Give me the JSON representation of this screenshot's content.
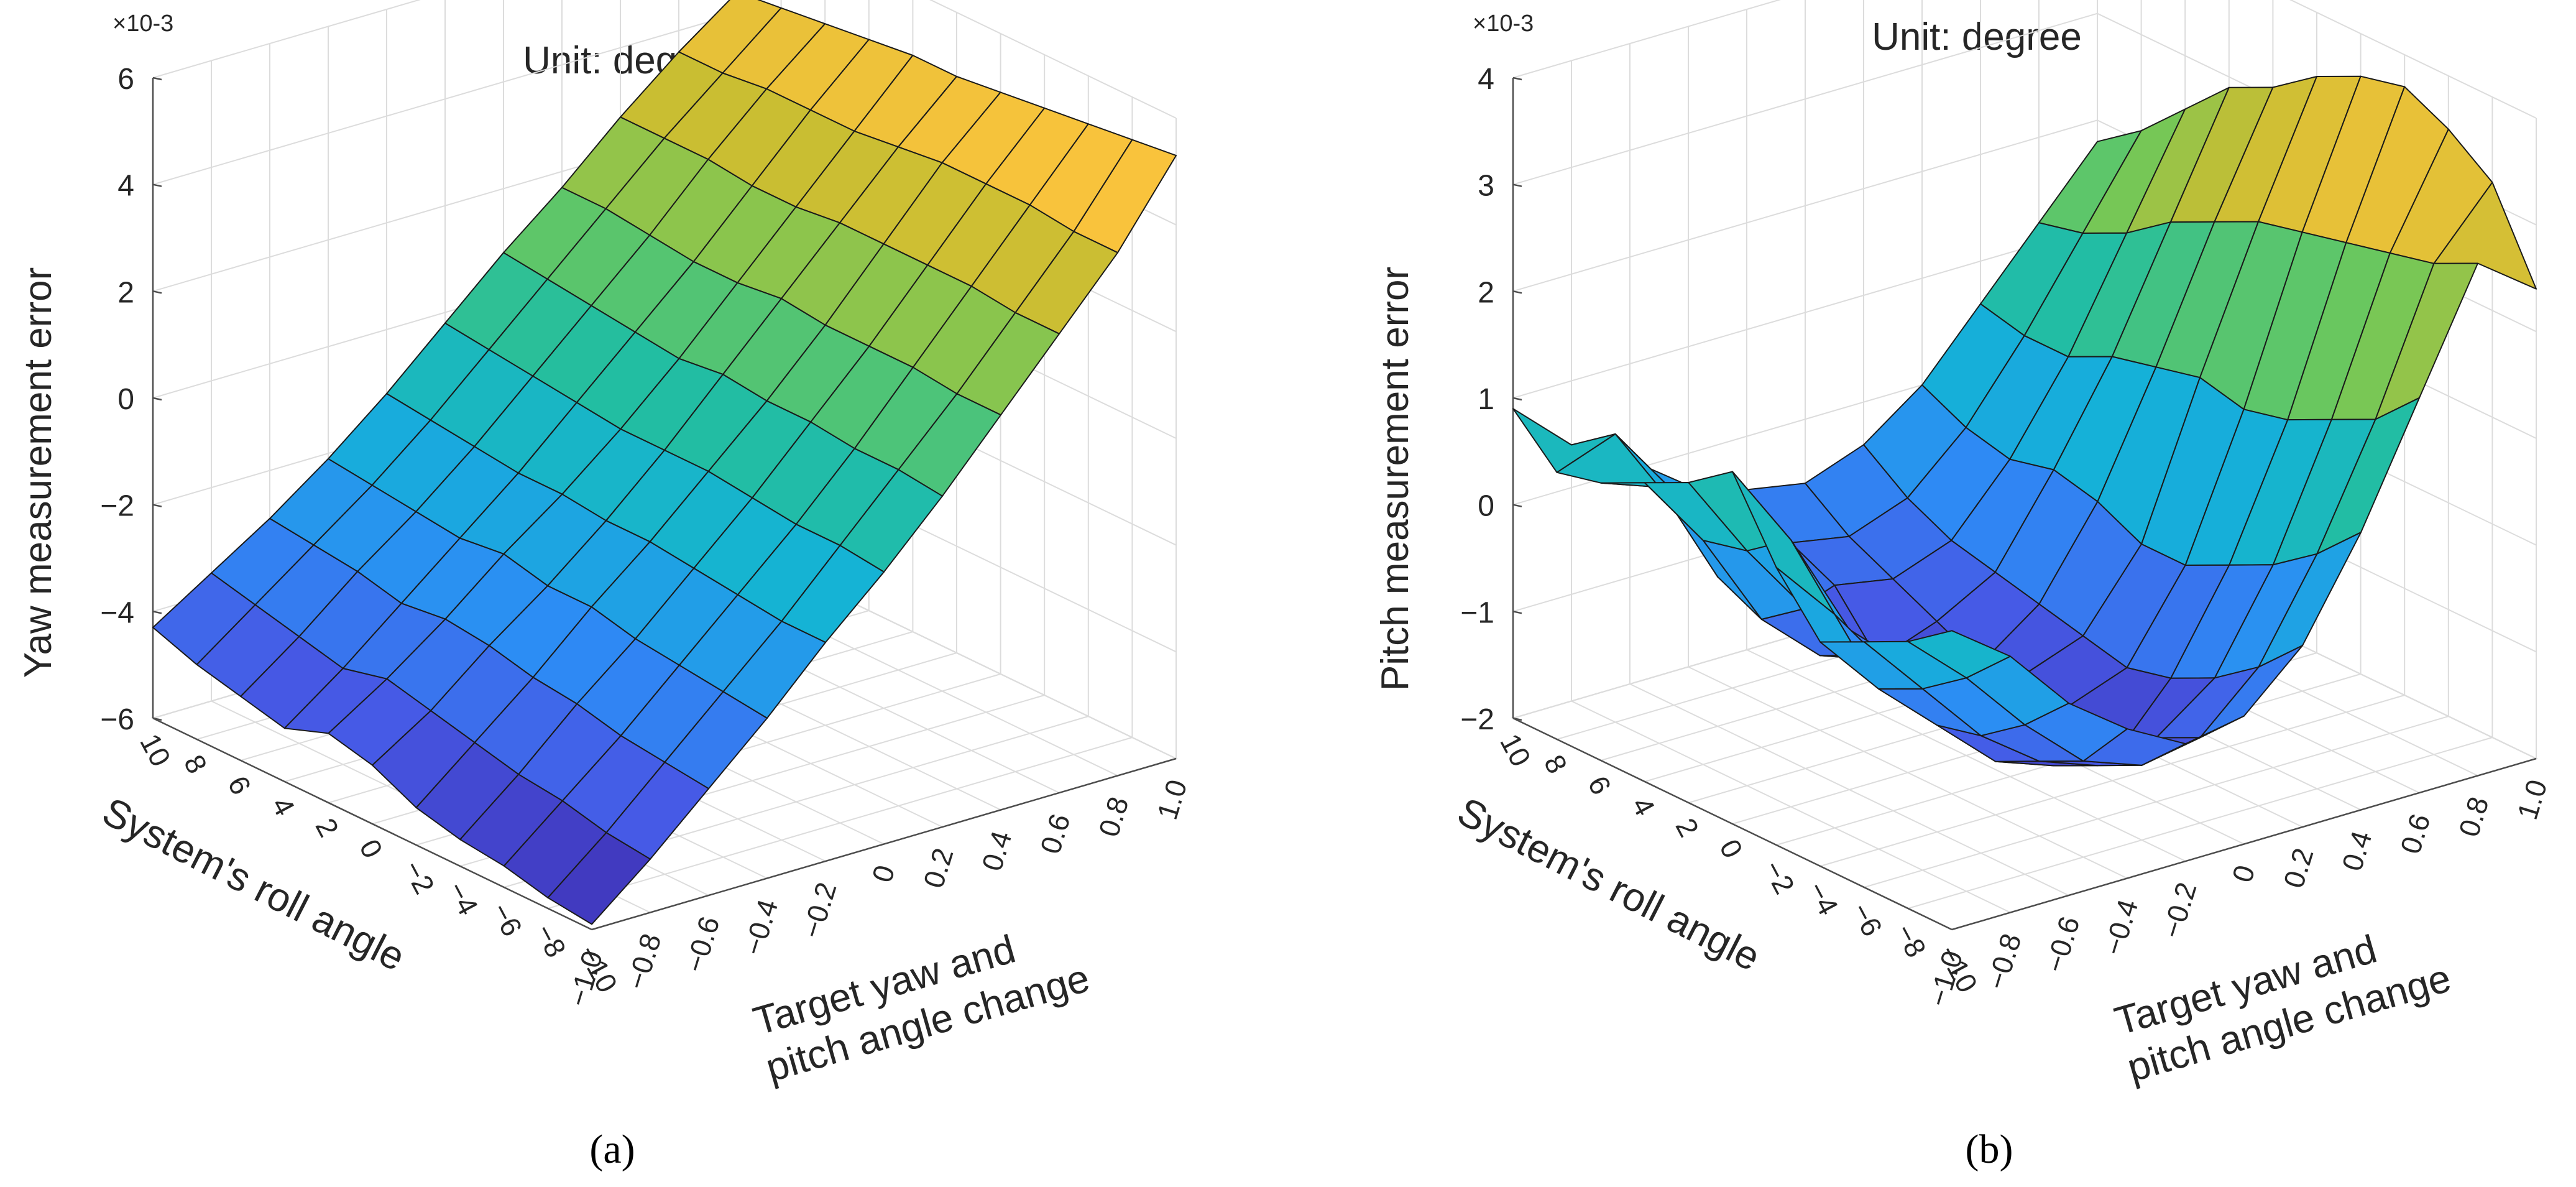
{
  "figure": {
    "panels": [
      "(a)",
      "(b)"
    ]
  },
  "chart_data": [
    {
      "type": "surface3d",
      "title": "Unit: degree",
      "zlabel": "Yaw measurement error",
      "zscale": "×10-3",
      "x_label": "System's roll angle",
      "y_label": [
        "Target yaw and",
        "pitch angle change"
      ],
      "x": [
        10,
        8,
        6,
        4,
        2,
        0,
        -2,
        -4,
        -6,
        -8,
        -10
      ],
      "x_tick_labels": [
        "10",
        "8",
        "6",
        "4",
        "2",
        "0",
        "−2",
        "−4",
        "−6",
        "−8",
        "−10"
      ],
      "y": [
        -1.0,
        -0.8,
        -0.6,
        -0.4,
        -0.2,
        0,
        0.2,
        0.4,
        0.6,
        0.8,
        1.0
      ],
      "y_tick_labels": [
        "−1.0",
        "−0.8",
        "−0.6",
        "−0.4",
        "−0.2",
        "0",
        "0.2",
        "0.4",
        "0.6",
        "0.8",
        "1.0"
      ],
      "zlim": [
        -6,
        6
      ],
      "z_ticks": [
        -6,
        -4,
        -2,
        0,
        2,
        4,
        6
      ],
      "z_tick_labels": [
        "−6",
        "−4",
        "−2",
        "0",
        "2",
        "4",
        "6"
      ],
      "z": [
        [
          -4.3,
          -3.6,
          -2.9,
          -2.1,
          -1.2,
          -0.2,
          0.8,
          1.7,
          2.7,
          3.6,
          4.4
        ],
        [
          -4.6,
          -3.8,
          -3.0,
          -2.2,
          -1.3,
          -0.3,
          0.7,
          1.7,
          2.7,
          3.6,
          4.5
        ],
        [
          -4.8,
          -4.0,
          -3.1,
          -2.3,
          -1.4,
          -0.4,
          0.6,
          1.6,
          2.7,
          3.7,
          4.6
        ],
        [
          -5.0,
          -4.2,
          -3.3,
          -2.4,
          -1.5,
          -0.5,
          0.5,
          1.5,
          2.6,
          3.7,
          4.7
        ],
        [
          -4.7,
          -4.0,
          -3.2,
          -2.3,
          -1.5,
          -0.6,
          0.4,
          1.5,
          2.6,
          3.7,
          4.8
        ],
        [
          -4.9,
          -4.2,
          -3.3,
          -2.5,
          -1.6,
          -0.6,
          0.5,
          1.6,
          2.7,
          3.8,
          4.8
        ],
        [
          -5.3,
          -4.4,
          -3.5,
          -2.5,
          -1.6,
          -0.6,
          0.4,
          1.5,
          2.7,
          3.9,
          4.9
        ],
        [
          -5.5,
          -4.6,
          -3.6,
          -2.7,
          -1.7,
          -0.7,
          0.4,
          1.5,
          2.7,
          3.9,
          5.0
        ],
        [
          -5.6,
          -4.7,
          -3.8,
          -2.8,
          -1.8,
          -0.8,
          0.3,
          1.5,
          2.7,
          3.9,
          5.1
        ],
        [
          -5.8,
          -4.9,
          -3.9,
          -2.9,
          -1.9,
          -0.8,
          0.3,
          1.4,
          2.6,
          3.8,
          5.2
        ],
        [
          -5.9,
          -5.0,
          -4.0,
          -3.0,
          -1.9,
          -0.9,
          0.2,
          1.4,
          2.6,
          3.8,
          5.3
        ]
      ]
    },
    {
      "type": "surface3d",
      "title": "Unit: degree",
      "zlabel": "Pitch measurement error",
      "zscale": "×10-3",
      "x_label": "System's roll angle",
      "y_label": [
        "Target yaw and",
        "pitch angle change"
      ],
      "x": [
        10,
        8,
        6,
        4,
        2,
        0,
        -2,
        -4,
        -6,
        -8,
        -10
      ],
      "x_tick_labels": [
        "10",
        "8",
        "6",
        "4",
        "2",
        "0",
        "−2",
        "−4",
        "−6",
        "−8",
        "−10"
      ],
      "y": [
        -1.0,
        -0.8,
        -0.6,
        -0.4,
        -0.2,
        0,
        0.2,
        0.4,
        0.6,
        0.8,
        1.0
      ],
      "y_tick_labels": [
        "−1.0",
        "−0.8",
        "−0.6",
        "−0.4",
        "−0.2",
        "0",
        "0.2",
        "0.4",
        "0.6",
        "0.8",
        "1.0"
      ],
      "zlim": [
        -2,
        4
      ],
      "z_ticks": [
        -2,
        -1,
        0,
        1,
        2,
        3,
        4
      ],
      "z_tick_labels": [
        "−2",
        "−1",
        "0",
        "1",
        "2",
        "3",
        "4"
      ],
      "z": [
        [
          0.9,
          0.4,
          0.1,
          -0.3,
          -0.5,
          -0.6,
          -0.4,
          0.0,
          0.6,
          1.2,
          1.8
        ],
        [
          0.5,
          0.7,
          0.0,
          -0.5,
          -0.8,
          -0.9,
          -0.7,
          -0.2,
          0.5,
          1.3,
          2.1
        ],
        [
          0.6,
          0.4,
          -0.6,
          -1.2,
          -1.0,
          -1.1,
          -0.9,
          -0.3,
          0.5,
          1.5,
          2.5
        ],
        [
          0.8,
          0.1,
          -0.8,
          -1.3,
          -1.5,
          -1.3,
          -1.0,
          -0.2,
          0.7,
          1.8,
          2.9
        ],
        [
          1.0,
          0.2,
          -0.5,
          -1.1,
          -1.3,
          -1.5,
          -1.1,
          -0.3,
          0.8,
          2.0,
          3.1
        ],
        [
          1.3,
          0.5,
          -0.5,
          -1.0,
          -1.4,
          -1.4,
          -1.2,
          -0.5,
          0.9,
          2.2,
          3.4
        ],
        [
          0.6,
          0.0,
          -0.7,
          -1.2,
          -1.6,
          -1.5,
          -1.3,
          -0.5,
          0.8,
          2.3,
          3.6
        ],
        [
          0.1,
          -0.5,
          -1.0,
          -1.5,
          -1.7,
          -1.8,
          -1.2,
          -0.3,
          0.9,
          2.4,
          3.7
        ],
        [
          0.3,
          -0.3,
          -0.9,
          -1.3,
          -1.5,
          -1.4,
          -1.0,
          -0.1,
          1.1,
          2.5,
          3.5
        ],
        [
          0.5,
          0.0,
          -0.6,
          -1.1,
          -1.3,
          -1.2,
          -0.7,
          0.2,
          1.3,
          2.6,
          3.2
        ],
        [
          0.8,
          0.4,
          -0.2,
          -0.6,
          -0.9,
          -0.8,
          -0.3,
          0.6,
          1.7,
          2.8,
          2.4
        ]
      ]
    }
  ]
}
